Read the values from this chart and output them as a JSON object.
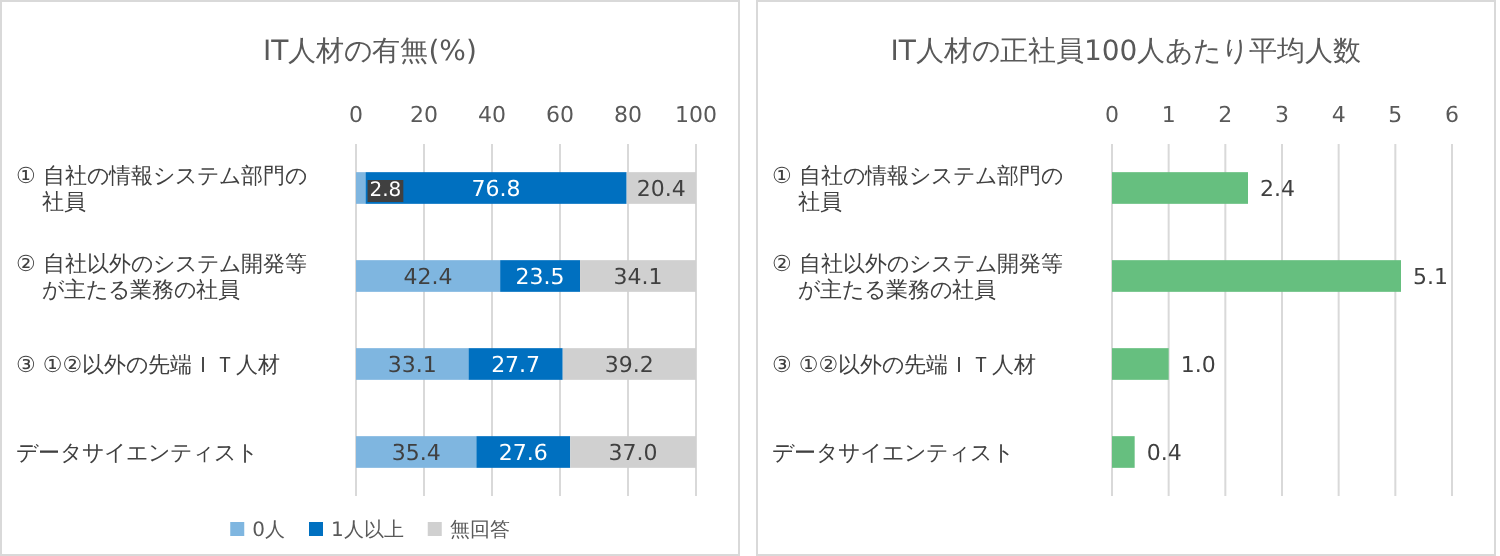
{
  "chart_data": [
    {
      "type": "bar",
      "orientation": "horizontal",
      "stacked": true,
      "title": "IT人材の有無(%)",
      "categories": [
        "① 自社の情報システム部門の社員",
        "② 自社以外のシステム開発等が主たる業務の社員",
        "③ ①②以外の先端ＩＴ人材",
        "データサイエンティスト"
      ],
      "series": [
        {
          "name": "0人",
          "color": "#7fb6e0",
          "values": [
            2.8,
            42.4,
            33.1,
            35.4
          ],
          "value_labels": [
            "2.8",
            "42.4",
            "33.1",
            "35.4"
          ]
        },
        {
          "name": "1人以上",
          "color": "#0070c0",
          "values": [
            76.8,
            23.5,
            27.7,
            27.6
          ],
          "value_labels": [
            "76.8",
            "23.5",
            "27.7",
            "27.6"
          ]
        },
        {
          "name": "無回答",
          "color": "#d0d0d0",
          "values": [
            20.4,
            34.1,
            39.2,
            37.0
          ],
          "value_labels": [
            "20.4",
            "34.1",
            "39.2",
            "37.0"
          ]
        }
      ],
      "xlim": [
        0,
        100
      ],
      "xticks": [
        0,
        20,
        40,
        60,
        80,
        100
      ],
      "grid": "x",
      "legend": "bottom"
    },
    {
      "type": "bar",
      "orientation": "horizontal",
      "title": "IT人材の正社員100人あたり平均人数",
      "categories": [
        "① 自社の情報システム部門の社員",
        "② 自社以外のシステム開発等が主たる業務の社員",
        "③ ①②以外の先端ＩＴ人材",
        "データサイエンティスト"
      ],
      "series": [
        {
          "color": "#66bf7f",
          "values": [
            2.4,
            5.1,
            1.0,
            0.4
          ]
        }
      ],
      "value_labels": [
        "2.4",
        "5.1",
        "1.0",
        "0.4"
      ],
      "xlim": [
        0,
        6
      ],
      "xticks": [
        0,
        1,
        2,
        3,
        4,
        5,
        6
      ],
      "grid": "x",
      "legend": false
    }
  ]
}
